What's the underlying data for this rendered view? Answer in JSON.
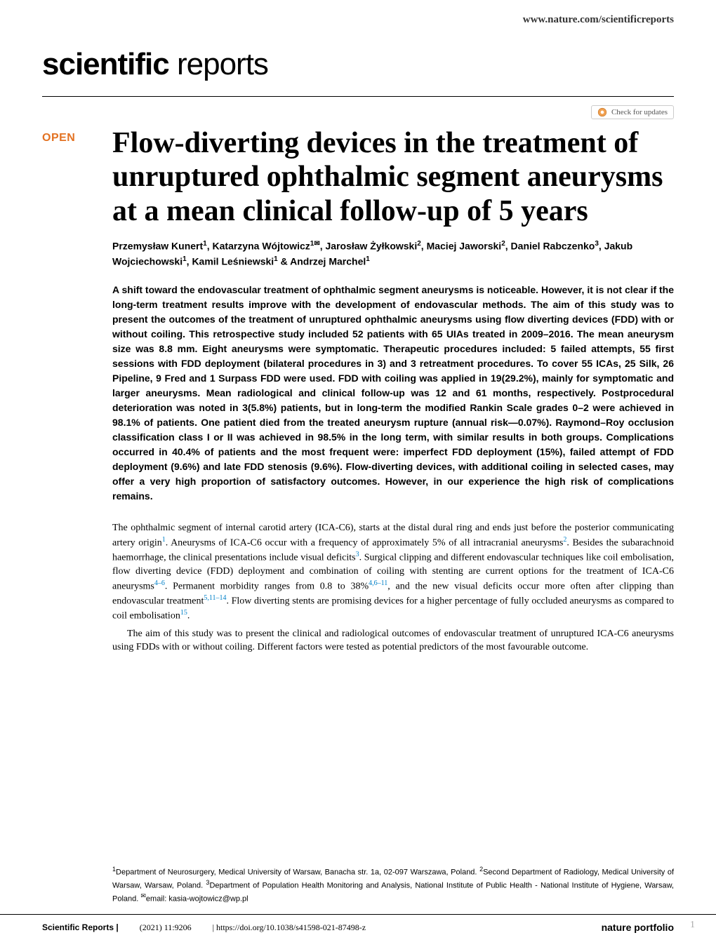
{
  "header": {
    "site_url": "www.nature.com/scientificreports"
  },
  "journal": {
    "name_bold": "scientific",
    "name_light": " reports"
  },
  "check_updates": {
    "label": "Check for updates"
  },
  "open_access": {
    "label": "OPEN"
  },
  "article": {
    "title": "Flow-diverting devices in the treatment of unruptured ophthalmic segment aneurysms at a mean clinical follow-up of 5 years",
    "authors_html": "Przemysław Kunert<sup>1</sup>, Katarzyna Wójtowicz<sup>1✉</sup>, Jarosław Żyłkowski<sup>2</sup>, Maciej Jaworski<sup>2</sup>, Daniel Rabczenko<sup>3</sup>, Jakub Wojciechowski<sup>1</sup>, Kamil Leśniewski<sup>1</sup> & Andrzej Marchel<sup>1</sup>",
    "abstract": "A shift toward the endovascular treatment of ophthalmic segment aneurysms is noticeable. However, it is not clear if the long-term treatment results improve with the development of endovascular methods. The aim of this study was to present the outcomes of the treatment of unruptured ophthalmic aneurysms using flow diverting devices (FDD) with or without coiling. This retrospective study included 52 patients with 65 UIAs treated in 2009–2016. The mean aneurysm size was 8.8 mm. Eight aneurysms were symptomatic. Therapeutic procedures included: 5 failed attempts, 55 first sessions with FDD deployment (bilateral procedures in 3) and 3 retreatment procedures. To cover 55 ICAs, 25 Silk, 26 Pipeline, 9 Fred and 1 Surpass FDD were used. FDD with coiling was applied in 19(29.2%), mainly for symptomatic and larger aneurysms. Mean radiological and clinical follow-up was 12 and 61 months, respectively. Postprocedural deterioration was noted in 3(5.8%) patients, but in long-term the modified Rankin Scale grades 0–2 were achieved in 98.1% of patients. One patient died from the treated aneurysm rupture (annual risk—0.07%). Raymond–Roy occlusion classification class I or II was achieved in 98.5% in the long term, with similar results in both groups. Complications occurred in 40.4% of patients and the most frequent were: imperfect FDD deployment (15%), failed attempt of FDD deployment (9.6%) and late FDD stenosis (9.6%). Flow-diverting devices, with additional coiling in selected cases, may offer a very high proportion of satisfactory outcomes. However, in our experience the high risk of complications remains.",
    "body_p1": "The ophthalmic segment of internal carotid artery (ICA-C6), starts at the distal dural ring and ends just before the posterior communicating artery origin",
    "body_p1_after_ref1": ". Aneurysms of ICA-C6 occur with a frequency of approximately 5% of all intracranial aneurysms",
    "body_p1_after_ref2": ". Besides the subarachnoid haemorrhage, the clinical presentations include visual deficits",
    "body_p1_after_ref3": ". Surgical clipping and different endovascular techniques like coil embolisation, flow diverting device (FDD) deployment and combination of coiling with stenting are current options for the treatment of ICA-C6 aneurysms",
    "body_p1_after_ref4": ". Permanent morbidity ranges from 0.8 to 38%",
    "body_p1_after_ref5": ", and the new visual deficits occur more often after clipping than endovascular treatment",
    "body_p1_after_ref6": ". Flow diverting stents are promising devices for a higher percentage of fully occluded aneurysms as compared to coil embolisation",
    "body_p1_end": ".",
    "body_p2": "The aim of this study was to present the clinical and radiological outcomes of endovascular treatment of unruptured ICA-C6 aneurysms using FDDs with or without coiling. Different factors were tested as potential predictors of the most favourable outcome.",
    "refs": {
      "r1": "1",
      "r2": "2",
      "r3": "3",
      "r4_6": "4–6",
      "r4_6_11": "4,6–11",
      "r5_11_14": "5,11–14",
      "r15": "15"
    }
  },
  "affiliations": {
    "text_html": "<sup>1</sup>Department of Neurosurgery, Medical University of Warsaw, Banacha str. 1a, 02-097 Warszawa, Poland. <sup>2</sup>Second Department of Radiology, Medical University of Warsaw, Warsaw, Poland. <sup>3</sup>Department of Population Health Monitoring and Analysis, National Institute of Public Health - National Institute of Hygiene, Warsaw, Poland. <sup>✉</sup>email: kasia-wojtowicz@wp.pl"
  },
  "footer": {
    "journal": "Scientific Reports |",
    "citation": "(2021) 11:9206",
    "doi": "| https://doi.org/10.1038/s41598-021-87498-z",
    "publisher": "nature portfolio",
    "page": "1"
  },
  "colors": {
    "open_orange": "#e37222",
    "ref_blue": "#0080c8",
    "gray_page": "#aaa"
  }
}
